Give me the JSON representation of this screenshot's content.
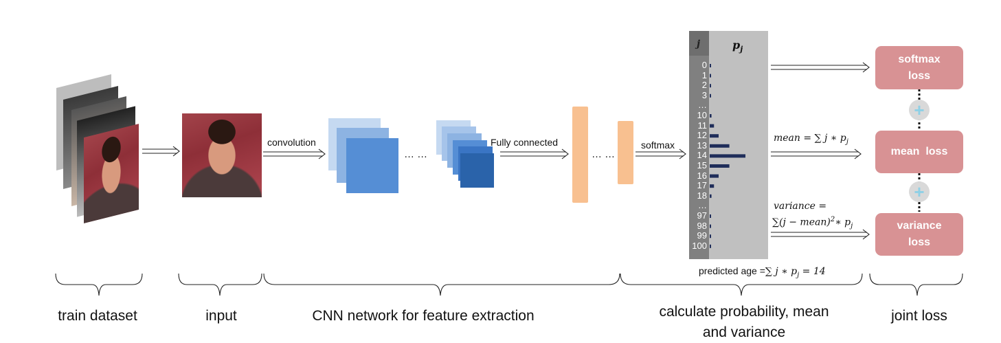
{
  "labels": {
    "convolution": "convolution",
    "dots1": "… …",
    "fully_connected": "Fully connected",
    "dots2": "… …",
    "softmax": "softmax",
    "mean_formula": "mean = ∑ j ∗ p",
    "mean_sub": "j",
    "variance_line1": "variance =",
    "variance_line2": "∑(j − mean)",
    "variance_sup": "2",
    "variance_tail": "∗ p",
    "variance_sub": "j",
    "predicted": "predicted age =",
    "predicted_formula": "∑ j ∗ p",
    "predicted_sub": "j",
    "predicted_value": "= 14"
  },
  "table": {
    "header_j": "j",
    "header_p": "p",
    "header_p_sub": "j",
    "rows": [
      "0",
      "1",
      "2",
      "3",
      "…",
      "10",
      "11",
      "12",
      "13",
      "14",
      "15",
      "16",
      "17",
      "18",
      "…",
      "97",
      "98",
      "99",
      "100"
    ],
    "probabilities": [
      0.02,
      0.02,
      0.02,
      0.02,
      0,
      0.05,
      0.12,
      0.25,
      0.55,
      1.0,
      0.55,
      0.25,
      0.12,
      0.05,
      0,
      0.02,
      0.02,
      0.02,
      0.02
    ]
  },
  "losses": {
    "softmax": [
      "softmax",
      "loss"
    ],
    "mean": "mean  loss",
    "variance": [
      "variance",
      "loss"
    ]
  },
  "stages": {
    "train": "train dataset",
    "input": "input",
    "cnn": "CNN network for feature extraction",
    "calc_line1": "calculate probability, mean",
    "calc_line2": "and variance",
    "joint": "joint loss"
  },
  "colors": {
    "cnn_light": "#c5d9f1",
    "cnn_mid": "#8db3e2",
    "cnn_dark": "#2a63aa",
    "fc": "#f8c090",
    "loss": "#d89294",
    "bar": "#1f2d5a",
    "table_dark": "#808080",
    "table_light": "#c0c0c0"
  }
}
